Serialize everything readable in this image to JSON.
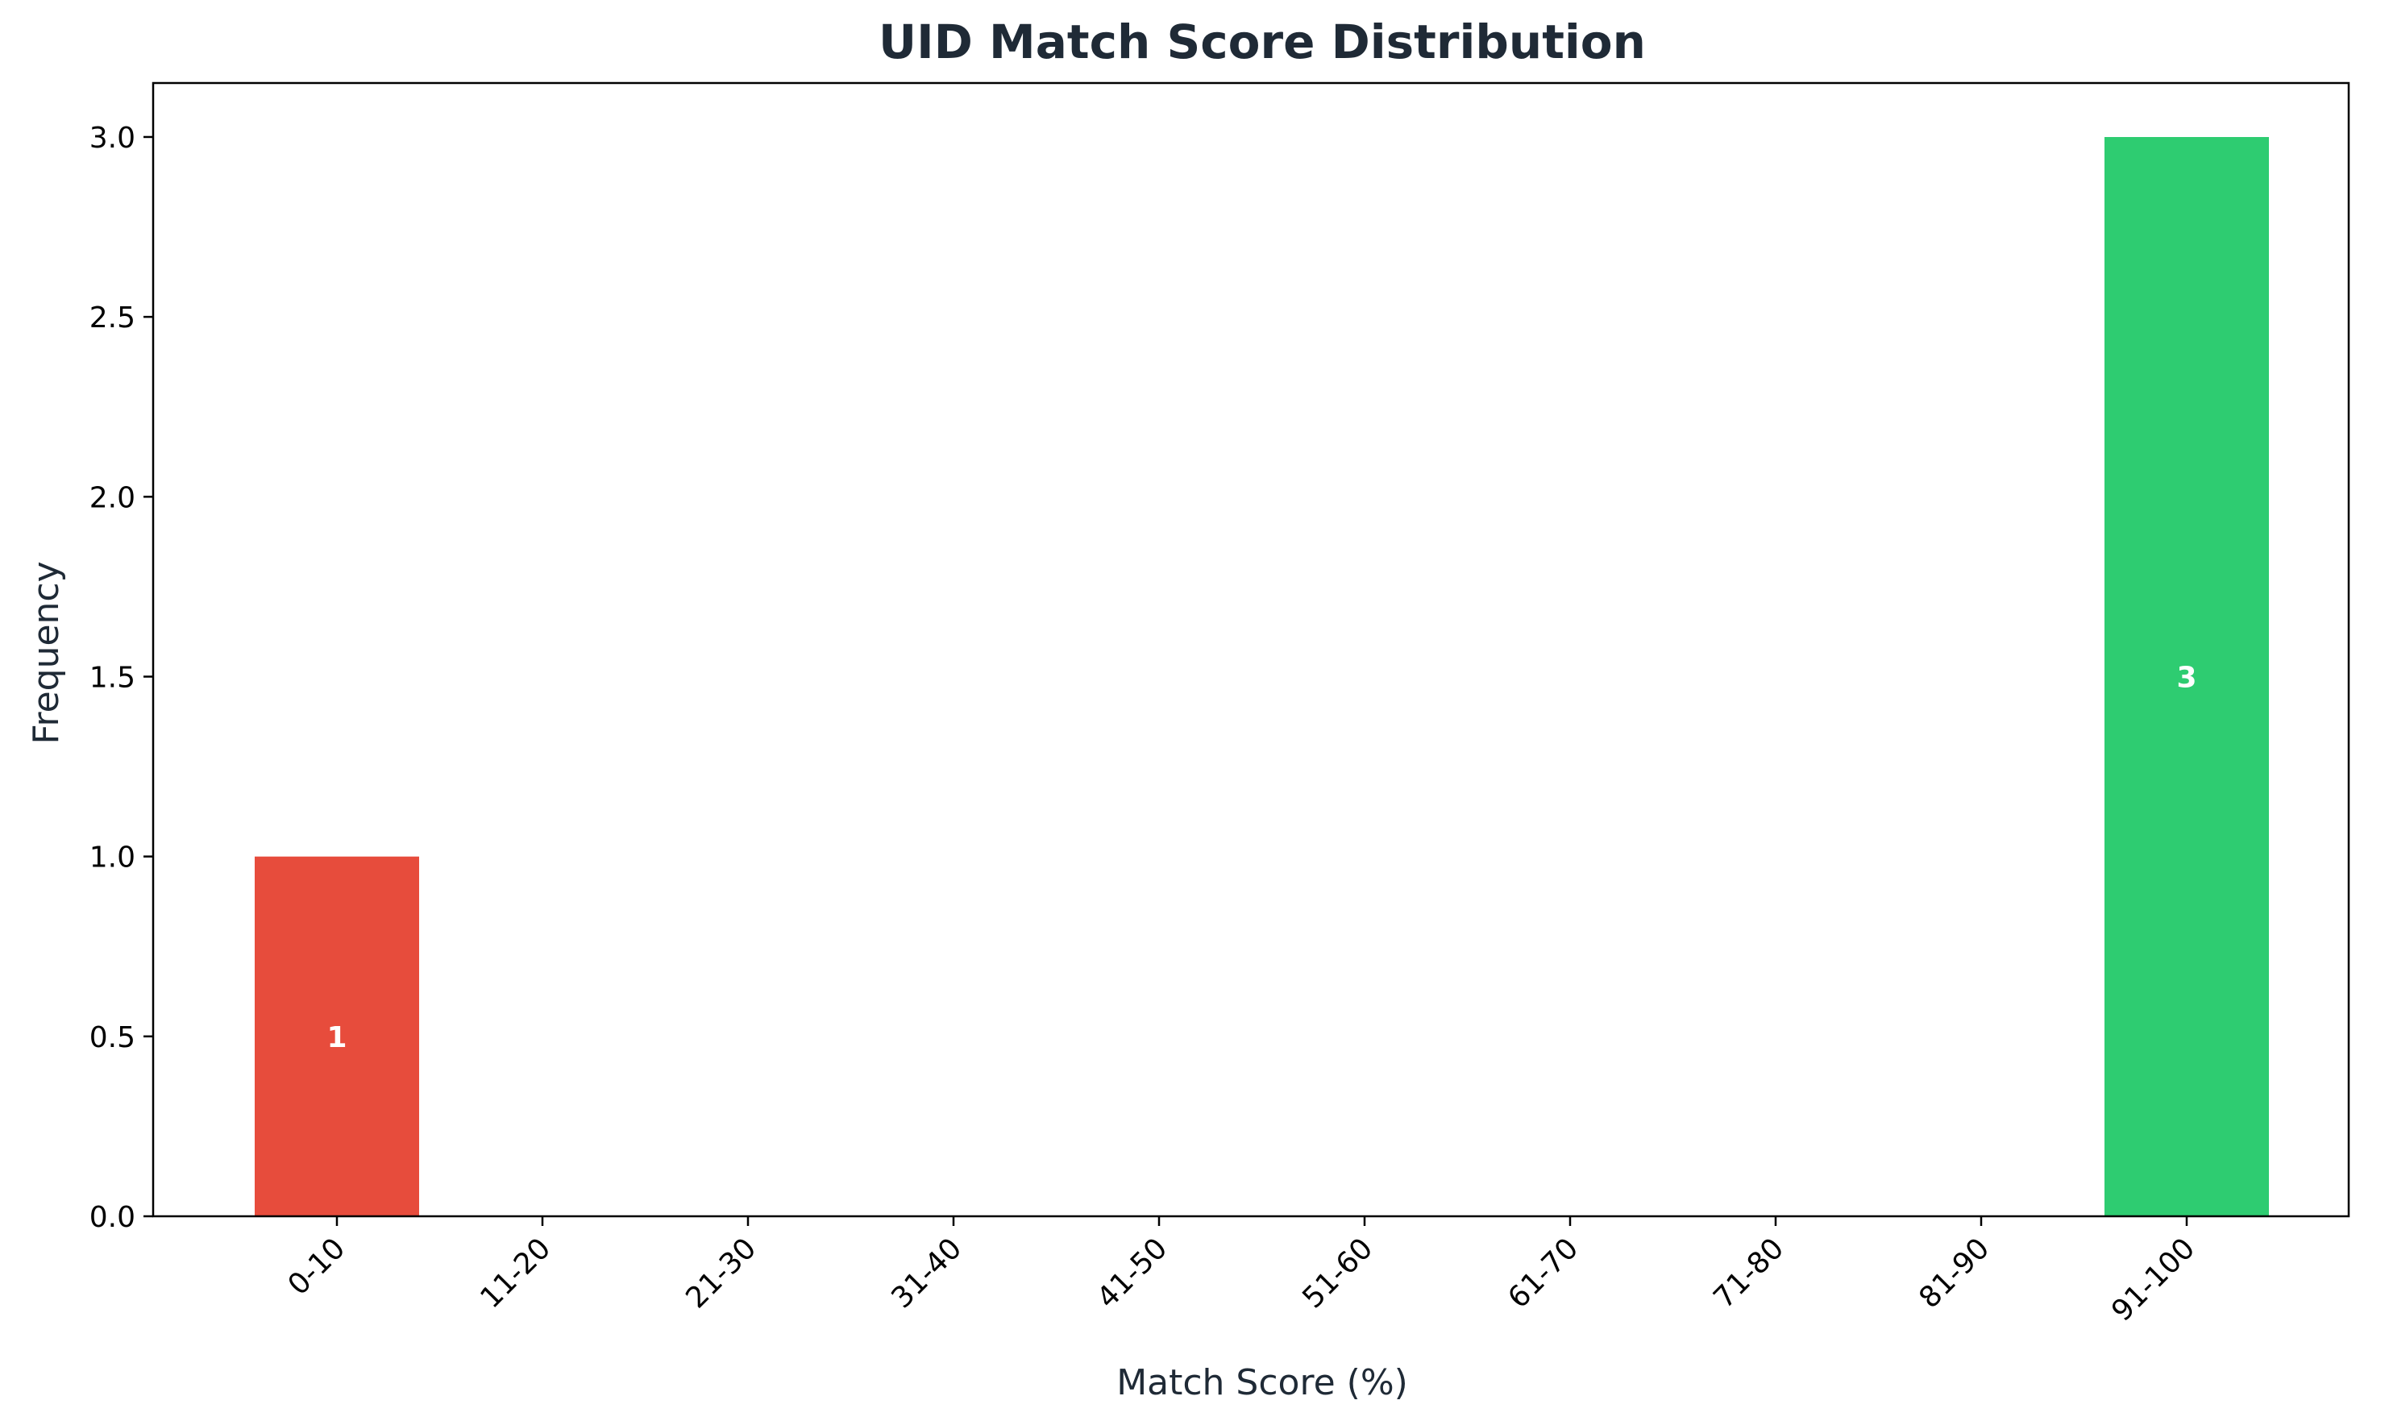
{
  "chart_data": {
    "type": "bar",
    "title": "UID Match Score Distribution",
    "xlabel": "Match Score (%)",
    "ylabel": "Frequency",
    "categories": [
      "0-10",
      "11-20",
      "21-30",
      "31-40",
      "41-50",
      "51-60",
      "61-70",
      "71-80",
      "81-90",
      "91-100"
    ],
    "values": [
      1,
      0,
      0,
      0,
      0,
      0,
      0,
      0,
      0,
      3
    ],
    "bar_colors": [
      "#e74c3c",
      "#e74c3c",
      "#e74c3c",
      "#e74c3c",
      "#e74c3c",
      "#e74c3c",
      "#e74c3c",
      "#e74c3c",
      "#e74c3c",
      "#2ecc71"
    ],
    "data_labels": [
      "1",
      "",
      "",
      "",
      "",
      "",
      "",
      "",
      "",
      "3"
    ],
    "ylim": [
      0,
      3.15
    ],
    "yticks": [
      0.0,
      0.5,
      1.0,
      1.5,
      2.0,
      2.5,
      3.0
    ],
    "ytick_labels": [
      "0.0",
      "0.5",
      "1.0",
      "1.5",
      "2.0",
      "2.5",
      "3.0"
    ],
    "grid": false,
    "legend": "none"
  }
}
